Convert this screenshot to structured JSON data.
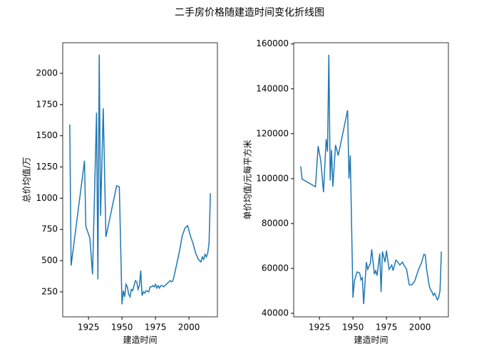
{
  "title": "二手房价格随建造时间变化折线图",
  "chart_data": [
    {
      "type": "line",
      "xlabel": "建造时间",
      "ylabel": "总价均值/万",
      "xlim": [
        1905.75,
        2021.25
      ],
      "xticks": [
        1925,
        1950,
        1975,
        2000
      ],
      "ylim": [
        50,
        2245
      ],
      "yticks": [
        250,
        500,
        750,
        1000,
        1250,
        1500,
        1750,
        2000
      ],
      "series": [
        {
          "color": "#1f77b4",
          "x": [
            1911,
            1912,
            1922,
            1923,
            1926,
            1928,
            1931,
            1932,
            1933,
            1934,
            1936,
            1938,
            1946,
            1948,
            1950,
            1951,
            1952,
            1953,
            1954,
            1955,
            1956,
            1957,
            1958,
            1960,
            1961,
            1962,
            1963,
            1964,
            1965,
            1966,
            1967,
            1968,
            1970,
            1971,
            1972,
            1973,
            1974,
            1975,
            1976,
            1977,
            1978,
            1979,
            1980,
            1981,
            1982,
            1983,
            1984,
            1985,
            1986,
            1987,
            1988,
            1989,
            1990,
            1991,
            1993,
            1995,
            1997,
            1999,
            2001,
            2003,
            2005,
            2007,
            2009,
            2010,
            2011,
            2012,
            2013,
            2014,
            2015,
            2016
          ],
          "values": [
            1590,
            460,
            1300,
            775,
            680,
            390,
            1685,
            350,
            2150,
            860,
            1720,
            690,
            1100,
            1090,
            150,
            260,
            210,
            310,
            290,
            230,
            210,
            270,
            260,
            340,
            330,
            270,
            300,
            420,
            220,
            250,
            240,
            260,
            250,
            290,
            290,
            300,
            290,
            310,
            280,
            300,
            280,
            300,
            300,
            290,
            300,
            310,
            320,
            330,
            340,
            330,
            340,
            380,
            430,
            480,
            580,
            700,
            760,
            780,
            700,
            640,
            560,
            510,
            490,
            530,
            510,
            550,
            530,
            560,
            640,
            1040
          ]
        }
      ]
    },
    {
      "type": "line",
      "xlabel": "建造时间",
      "ylabel": "单价均值/元每平方米",
      "xlim": [
        1905.75,
        2021.25
      ],
      "xticks": [
        1925,
        1950,
        1975,
        2000
      ],
      "ylim": [
        38420,
        160550
      ],
      "yticks": [
        40000,
        60000,
        80000,
        100000,
        120000,
        140000,
        160000
      ],
      "series": [
        {
          "color": "#1f77b4",
          "x": [
            1911,
            1912,
            1922,
            1924,
            1926,
            1928,
            1930,
            1931,
            1932,
            1933,
            1934,
            1935,
            1937,
            1939,
            1946,
            1947,
            1948,
            1950,
            1951,
            1953,
            1955,
            1956,
            1957,
            1958,
            1960,
            1961,
            1963,
            1964,
            1966,
            1967,
            1968,
            1970,
            1971,
            1972,
            1974,
            1975,
            1977,
            1979,
            1980,
            1982,
            1983,
            1985,
            1987,
            1988,
            1990,
            1992,
            1994,
            1996,
            1999,
            2001,
            2003,
            2004,
            2005,
            2006,
            2007,
            2008,
            2009,
            2010,
            2011,
            2012,
            2013,
            2014,
            2015,
            2016
          ],
          "values": [
            105500,
            99800,
            96400,
            114500,
            107800,
            93900,
            117600,
            112000,
            155200,
            99200,
            112800,
            96400,
            115000,
            110300,
            130500,
            100000,
            110300,
            47000,
            54200,
            58400,
            58000,
            54900,
            55800,
            44100,
            62800,
            59600,
            62200,
            68500,
            57400,
            59000,
            56800,
            66600,
            49500,
            67500,
            62800,
            67900,
            59600,
            61500,
            59000,
            63700,
            63100,
            61500,
            62800,
            61500,
            59600,
            52700,
            52700,
            54200,
            59600,
            62200,
            66300,
            66000,
            59600,
            56000,
            52000,
            50500,
            49500,
            48000,
            48900,
            47500,
            46000,
            47000,
            50000,
            67500
          ]
        }
      ]
    }
  ]
}
